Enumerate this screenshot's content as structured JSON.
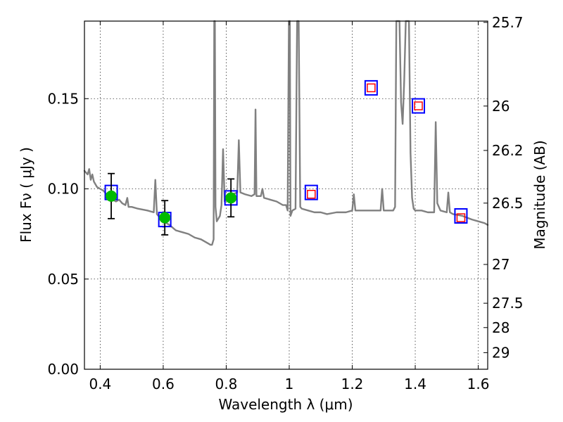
{
  "chart_data": {
    "type": "line",
    "xlabel": "Wavelength  λ (μm)",
    "ylabel": "Flux  Fν  ( μJy )",
    "y2label": "Magnitude (AB)",
    "xlim": [
      0.35,
      1.63
    ],
    "ylim": [
      0.0,
      0.193
    ],
    "x_ticks": [
      0.4,
      0.6,
      0.8,
      1.0,
      1.2,
      1.4,
      1.6
    ],
    "x_tick_labels": [
      "0.4",
      "0.6",
      "0.8",
      "1",
      "1.2",
      "1.4",
      "1.6"
    ],
    "y_ticks": [
      0.0,
      0.05,
      0.1,
      0.15
    ],
    "y_tick_labels": [
      "0.00",
      "0.05",
      "0.10",
      "0.15"
    ],
    "y2_ticks": [
      {
        "label": "25.7",
        "flux": 0.1923
      },
      {
        "label": "26",
        "flux": 0.1459
      },
      {
        "label": "26.2",
        "flux": 0.1213
      },
      {
        "label": "26.5",
        "flux": 0.0921
      },
      {
        "label": "27",
        "flux": 0.0581
      },
      {
        "label": "27.5",
        "flux": 0.0366
      },
      {
        "label": "28",
        "flux": 0.0231
      },
      {
        "label": "29",
        "flux": 0.0092
      }
    ],
    "grid": true,
    "colors": {
      "spectrum": "#808080",
      "model_box": "#0000ff",
      "observed_point": "#00bb00",
      "predicted_box": "#ff0000",
      "errorbar": "#000000"
    },
    "spectrum": [
      [
        0.35,
        0.11
      ],
      [
        0.36,
        0.108
      ],
      [
        0.365,
        0.111
      ],
      [
        0.37,
        0.105
      ],
      [
        0.375,
        0.108
      ],
      [
        0.38,
        0.104
      ],
      [
        0.39,
        0.101
      ],
      [
        0.4,
        0.1
      ],
      [
        0.41,
        0.099
      ],
      [
        0.42,
        0.097
      ],
      [
        0.43,
        0.095
      ],
      [
        0.44,
        0.094
      ],
      [
        0.45,
        0.093
      ],
      [
        0.46,
        0.094
      ],
      [
        0.47,
        0.092
      ],
      [
        0.48,
        0.091
      ],
      [
        0.486,
        0.095
      ],
      [
        0.49,
        0.09
      ],
      [
        0.5,
        0.09
      ],
      [
        0.52,
        0.089
      ],
      [
        0.55,
        0.088
      ],
      [
        0.57,
        0.087
      ],
      [
        0.575,
        0.105
      ],
      [
        0.58,
        0.086
      ],
      [
        0.59,
        0.084
      ],
      [
        0.6,
        0.082
      ],
      [
        0.62,
        0.08
      ],
      [
        0.64,
        0.077
      ],
      [
        0.66,
        0.076
      ],
      [
        0.68,
        0.075
      ],
      [
        0.7,
        0.073
      ],
      [
        0.72,
        0.072
      ],
      [
        0.74,
        0.07
      ],
      [
        0.75,
        0.069
      ],
      [
        0.755,
        0.069
      ],
      [
        0.76,
        0.072
      ],
      [
        0.762,
        0.193
      ],
      [
        0.764,
        0.193
      ],
      [
        0.766,
        0.09
      ],
      [
        0.77,
        0.082
      ],
      [
        0.78,
        0.085
      ],
      [
        0.785,
        0.091
      ],
      [
        0.79,
        0.122
      ],
      [
        0.795,
        0.093
      ],
      [
        0.8,
        0.095
      ],
      [
        0.82,
        0.097
      ],
      [
        0.835,
        0.098
      ],
      [
        0.84,
        0.127
      ],
      [
        0.845,
        0.098
      ],
      [
        0.86,
        0.097
      ],
      [
        0.88,
        0.096
      ],
      [
        0.89,
        0.097
      ],
      [
        0.893,
        0.144
      ],
      [
        0.896,
        0.096
      ],
      [
        0.91,
        0.096
      ],
      [
        0.915,
        0.1
      ],
      [
        0.92,
        0.095
      ],
      [
        0.94,
        0.094
      ],
      [
        0.96,
        0.093
      ],
      [
        0.98,
        0.091
      ],
      [
        0.99,
        0.091
      ],
      [
        0.995,
        0.088
      ],
      [
        0.999,
        0.193
      ],
      [
        1.002,
        0.193
      ],
      [
        1.004,
        0.085
      ],
      [
        1.01,
        0.088
      ],
      [
        1.02,
        0.089
      ],
      [
        1.025,
        0.193
      ],
      [
        1.03,
        0.193
      ],
      [
        1.035,
        0.09
      ],
      [
        1.04,
        0.089
      ],
      [
        1.06,
        0.088
      ],
      [
        1.08,
        0.087
      ],
      [
        1.1,
        0.087
      ],
      [
        1.12,
        0.086
      ],
      [
        1.15,
        0.087
      ],
      [
        1.18,
        0.087
      ],
      [
        1.2,
        0.088
      ],
      [
        1.205,
        0.097
      ],
      [
        1.21,
        0.088
      ],
      [
        1.25,
        0.088
      ],
      [
        1.28,
        0.088
      ],
      [
        1.29,
        0.088
      ],
      [
        1.295,
        0.1
      ],
      [
        1.3,
        0.088
      ],
      [
        1.33,
        0.088
      ],
      [
        1.336,
        0.09
      ],
      [
        1.34,
        0.193
      ],
      [
        1.35,
        0.193
      ],
      [
        1.355,
        0.148
      ],
      [
        1.36,
        0.136
      ],
      [
        1.365,
        0.16
      ],
      [
        1.37,
        0.193
      ],
      [
        1.38,
        0.193
      ],
      [
        1.385,
        0.12
      ],
      [
        1.39,
        0.095
      ],
      [
        1.395,
        0.089
      ],
      [
        1.4,
        0.088
      ],
      [
        1.42,
        0.088
      ],
      [
        1.44,
        0.087
      ],
      [
        1.46,
        0.087
      ],
      [
        1.465,
        0.137
      ],
      [
        1.47,
        0.092
      ],
      [
        1.48,
        0.088
      ],
      [
        1.5,
        0.087
      ],
      [
        1.505,
        0.098
      ],
      [
        1.51,
        0.087
      ],
      [
        1.52,
        0.086
      ],
      [
        1.55,
        0.085
      ],
      [
        1.58,
        0.083
      ],
      [
        1.6,
        0.082
      ],
      [
        1.62,
        0.081
      ],
      [
        1.63,
        0.08
      ]
    ],
    "model_boxes": [
      {
        "x": 0.435,
        "y": 0.098
      },
      {
        "x": 0.605,
        "y": 0.083
      },
      {
        "x": 0.815,
        "y": 0.095
      },
      {
        "x": 1.07,
        "y": 0.098
      },
      {
        "x": 1.26,
        "y": 0.156
      },
      {
        "x": 1.41,
        "y": 0.146
      },
      {
        "x": 1.545,
        "y": 0.085
      }
    ],
    "observed_points": [
      {
        "x": 0.435,
        "y": 0.096,
        "err": 0.0125
      },
      {
        "x": 0.605,
        "y": 0.084,
        "err": 0.0095
      },
      {
        "x": 0.815,
        "y": 0.095,
        "err": 0.0105
      }
    ],
    "predicted_boxes": [
      {
        "x": 1.07,
        "y": 0.097
      },
      {
        "x": 1.26,
        "y": 0.156
      },
      {
        "x": 1.41,
        "y": 0.146
      },
      {
        "x": 1.545,
        "y": 0.084
      }
    ]
  }
}
